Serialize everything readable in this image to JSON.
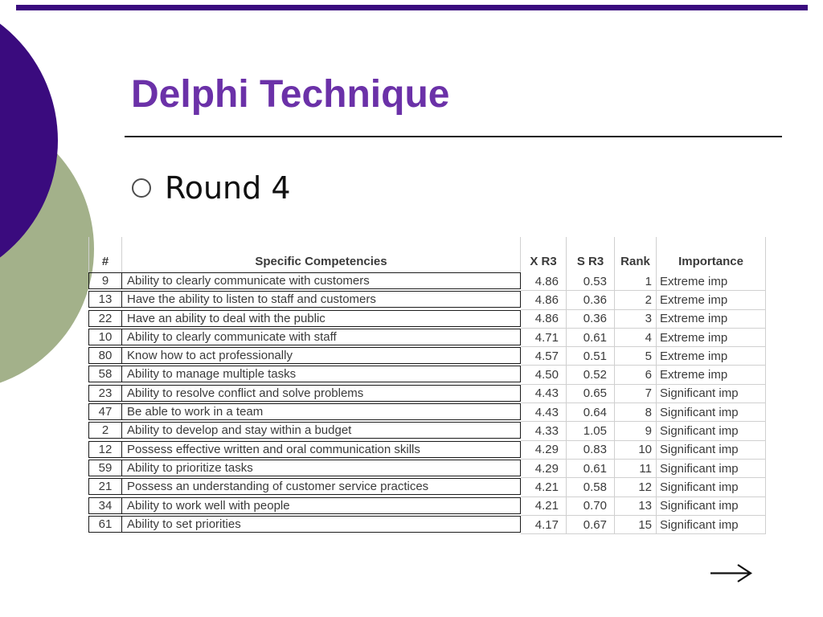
{
  "slide": {
    "title": "Delphi Technique",
    "bullet_text": "Round 4"
  },
  "table": {
    "headers": [
      "#",
      "Specific Competencies",
      "X R3",
      "S R3",
      "Rank",
      "Importance"
    ],
    "rows": [
      [
        "9",
        "Ability to clearly communicate with customers",
        "4.86",
        "0.53",
        "1",
        "Extreme imp"
      ],
      [
        "13",
        "Have the ability to listen to staff and customers",
        "4.86",
        "0.36",
        "2",
        "Extreme imp"
      ],
      [
        "22",
        "Have an ability to deal with the public",
        "4.86",
        "0.36",
        "3",
        "Extreme imp"
      ],
      [
        "10",
        "Ability to clearly communicate with staff",
        "4.71",
        "0.61",
        "4",
        "Extreme imp"
      ],
      [
        "80",
        "Know how to act professionally",
        "4.57",
        "0.51",
        "5",
        "Extreme imp"
      ],
      [
        "58",
        "Ability to manage multiple tasks",
        "4.50",
        "0.52",
        "6",
        "Extreme imp"
      ],
      [
        "23",
        "Ability to resolve conflict and solve problems",
        "4.43",
        "0.65",
        "7",
        "Significant imp"
      ],
      [
        "47",
        "Be able to work in a team",
        "4.43",
        "0.64",
        "8",
        "Significant imp"
      ],
      [
        "2",
        "Ability to develop and stay within a budget",
        "4.33",
        "1.05",
        "9",
        "Significant imp"
      ],
      [
        "12",
        "Possess effective written and oral communication skills",
        "4.29",
        "0.83",
        "10",
        "Significant imp"
      ],
      [
        "59",
        "Ability to prioritize tasks",
        "4.29",
        "0.61",
        "11",
        "Significant imp"
      ],
      [
        "21",
        "Possess an understanding of customer service practices",
        "4.21",
        "0.58",
        "12",
        "Significant imp"
      ],
      [
        "34",
        "Ability to work well with people",
        "4.21",
        "0.70",
        "13",
        "Significant imp"
      ],
      [
        "61",
        "Ability to set priorities",
        "4.17",
        "0.67",
        "15",
        "Significant imp"
      ]
    ]
  },
  "icons": {
    "next_arrow": "right-arrow"
  },
  "colors": {
    "deep_purple": "#3A0B7E",
    "sage_green": "#A3B18A",
    "title_purple": "#6B31A8",
    "table_text": "#3A3A3A",
    "grid_gray": "#D0D0D0",
    "border_black": "#1A1A1A"
  }
}
